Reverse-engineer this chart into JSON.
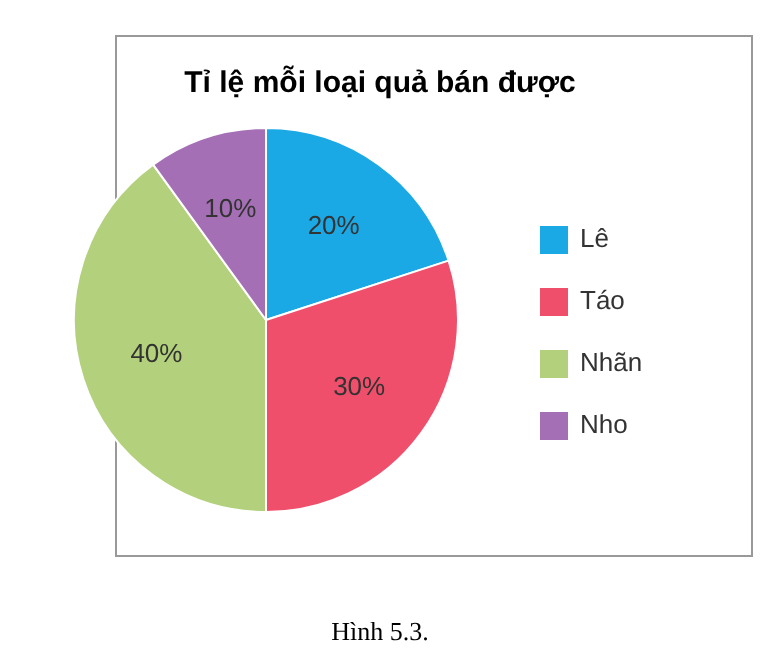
{
  "chart_data": {
    "type": "pie",
    "title": "Tỉ lệ mỗi loại quả bán được",
    "categories": [
      "Lê",
      "Táo",
      "Nhãn",
      "Nho"
    ],
    "values": [
      20,
      30,
      40,
      10
    ],
    "colors": [
      "#1ba9e6",
      "#f04f6b",
      "#b3d17c",
      "#a56fb5"
    ],
    "value_labels": [
      "20%",
      "30%",
      "40%",
      "10%"
    ],
    "legend": "right",
    "annotations": [
      "Hình 5.3."
    ]
  }
}
